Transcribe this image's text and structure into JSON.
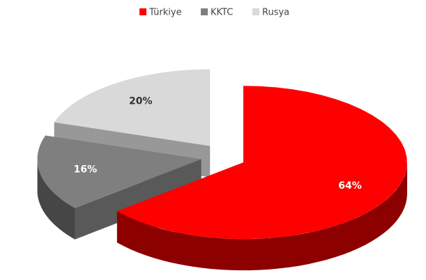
{
  "chart_data": {
    "type": "pie",
    "categories": [
      "Türkiye",
      "KKTC",
      "Rusya"
    ],
    "values": [
      64,
      16,
      20
    ],
    "value_labels": [
      "64%",
      "16%",
      "20%"
    ],
    "colors": [
      "#ff0000",
      "#7f7f7f",
      "#d9d9d9"
    ],
    "legend": "top"
  }
}
